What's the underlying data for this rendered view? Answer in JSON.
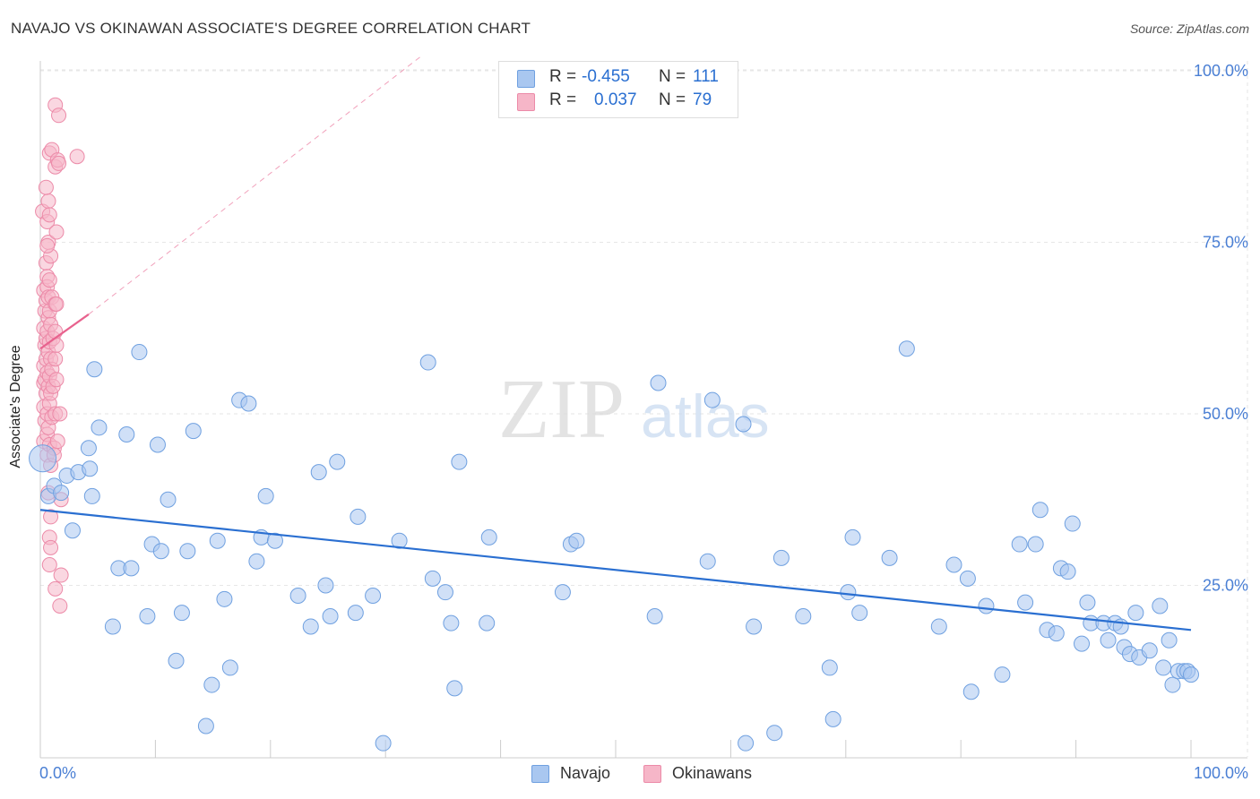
{
  "header": {
    "title": "NAVAJO VS OKINAWAN ASSOCIATE'S DEGREE CORRELATION CHART",
    "source": "Source: ZipAtlas.com"
  },
  "watermark": {
    "zip": "ZIP",
    "atlas": "atlas"
  },
  "legend": {
    "r_label": "R =",
    "n_label": "N =",
    "navajo": {
      "r": "-0.455",
      "n": "111"
    },
    "okinawans": {
      "r": "0.037",
      "n": "79"
    }
  },
  "colors": {
    "navajo_fill": "#a9c7f0",
    "navajo_stroke": "#6fa0e0",
    "navajo_line": "#2a6fd1",
    "okinawan_fill": "#f6b6c8",
    "okinawan_stroke": "#ec8aa8",
    "okinawan_line": "#e8628e",
    "axis_text": "#4a7fd4",
    "grid": "#e6e6e6"
  },
  "chart_data": {
    "type": "scatter",
    "title": "NAVAJO VS OKINAWAN ASSOCIATE'S DEGREE CORRELATION CHART",
    "xlabel": "",
    "ylabel": "Associate's Degree",
    "xlim": [
      0,
      100
    ],
    "ylim": [
      0,
      102
    ],
    "x_tick_labels": [
      "0.0%",
      "100.0%"
    ],
    "y_ticks": [
      25,
      50,
      75,
      100
    ],
    "y_tick_labels": [
      "25.0%",
      "50.0%",
      "75.0%",
      "100.0%"
    ],
    "grid": true,
    "series": [
      {
        "name": "Navajo",
        "r": -0.455,
        "n": 111,
        "trend": {
          "x0": 0,
          "y0": 36,
          "x1": 100,
          "y1": 18.5
        },
        "points": [
          [
            0.2,
            43.5
          ],
          [
            0.7,
            38
          ],
          [
            1.2,
            39.5
          ],
          [
            1.8,
            38.5
          ],
          [
            2.3,
            41
          ],
          [
            2.8,
            33
          ],
          [
            3.3,
            41.5
          ],
          [
            4.2,
            45
          ],
          [
            4.3,
            42
          ],
          [
            4.5,
            38
          ],
          [
            4.7,
            56.5
          ],
          [
            5.1,
            48
          ],
          [
            6.3,
            19
          ],
          [
            6.8,
            27.5
          ],
          [
            7.5,
            47
          ],
          [
            7.9,
            27.5
          ],
          [
            8.6,
            59
          ],
          [
            9.3,
            20.5
          ],
          [
            9.7,
            31
          ],
          [
            10.2,
            45.5
          ],
          [
            10.5,
            30
          ],
          [
            11.1,
            37.5
          ],
          [
            11.8,
            14
          ],
          [
            12.3,
            21
          ],
          [
            12.8,
            30
          ],
          [
            13.3,
            47.5
          ],
          [
            14.4,
            4.5
          ],
          [
            14.9,
            10.5
          ],
          [
            15.4,
            31.5
          ],
          [
            16,
            23
          ],
          [
            16.5,
            13
          ],
          [
            17.3,
            52
          ],
          [
            18.1,
            51.5
          ],
          [
            18.8,
            28.5
          ],
          [
            19.2,
            32
          ],
          [
            19.6,
            38
          ],
          [
            20.4,
            31.5
          ],
          [
            22.4,
            23.5
          ],
          [
            23.5,
            19
          ],
          [
            24.2,
            41.5
          ],
          [
            24.8,
            25
          ],
          [
            25.2,
            20.5
          ],
          [
            25.8,
            43
          ],
          [
            27.4,
            21
          ],
          [
            27.6,
            35
          ],
          [
            28.9,
            23.5
          ],
          [
            29.8,
            2
          ],
          [
            31.2,
            31.5
          ],
          [
            33.7,
            57.5
          ],
          [
            34.1,
            26
          ],
          [
            35.2,
            24
          ],
          [
            35.7,
            19.5
          ],
          [
            36,
            10
          ],
          [
            36.4,
            43
          ],
          [
            38.8,
            19.5
          ],
          [
            39,
            32
          ],
          [
            45.4,
            24
          ],
          [
            46.1,
            31
          ],
          [
            46.6,
            31.5
          ],
          [
            53.4,
            20.5
          ],
          [
            53.7,
            54.5
          ],
          [
            58,
            28.5
          ],
          [
            58.4,
            52
          ],
          [
            61.1,
            48.5
          ],
          [
            61.3,
            2
          ],
          [
            62,
            19
          ],
          [
            63.8,
            3.5
          ],
          [
            64.4,
            29
          ],
          [
            66.3,
            20.5
          ],
          [
            68.6,
            13
          ],
          [
            68.9,
            5.5
          ],
          [
            70.2,
            24
          ],
          [
            70.6,
            32
          ],
          [
            71.2,
            21
          ],
          [
            73.8,
            29
          ],
          [
            75.3,
            59.5
          ],
          [
            78.1,
            19
          ],
          [
            79.4,
            28
          ],
          [
            80.6,
            26
          ],
          [
            80.9,
            9.5
          ],
          [
            82.2,
            22
          ],
          [
            83.6,
            12
          ],
          [
            85.1,
            31
          ],
          [
            85.6,
            22.5
          ],
          [
            86.5,
            31
          ],
          [
            86.9,
            36
          ],
          [
            87.5,
            18.5
          ],
          [
            88.3,
            18
          ],
          [
            88.7,
            27.5
          ],
          [
            89.3,
            27
          ],
          [
            89.7,
            34
          ],
          [
            90.5,
            16.5
          ],
          [
            91,
            22.5
          ],
          [
            91.3,
            19.5
          ],
          [
            92.4,
            19.5
          ],
          [
            92.8,
            17
          ],
          [
            93.4,
            19.5
          ],
          [
            93.9,
            19
          ],
          [
            94.2,
            16
          ],
          [
            94.7,
            15
          ],
          [
            95.2,
            21
          ],
          [
            95.5,
            14.5
          ],
          [
            96.4,
            15.5
          ],
          [
            97.3,
            22
          ],
          [
            97.6,
            13
          ],
          [
            98.1,
            17
          ],
          [
            98.4,
            10.5
          ],
          [
            98.9,
            12.5
          ],
          [
            99.4,
            12.5
          ],
          [
            99.7,
            12.5
          ],
          [
            100,
            12
          ]
        ]
      },
      {
        "name": "Okinawans",
        "r": 0.037,
        "n": 79,
        "trend": {
          "x0": 0,
          "y0": 59.5,
          "x1": 4.2,
          "y1": 64.5
        },
        "trend_dashed": {
          "x0": 4.2,
          "y0": 64.5,
          "x1": 33,
          "y1": 102
        },
        "points": [
          [
            0.2,
            79.5
          ],
          [
            0.3,
            68
          ],
          [
            0.3,
            62.5
          ],
          [
            0.3,
            57
          ],
          [
            0.3,
            54.5
          ],
          [
            0.3,
            51
          ],
          [
            0.3,
            46
          ],
          [
            0.4,
            65
          ],
          [
            0.4,
            60
          ],
          [
            0.4,
            55
          ],
          [
            0.4,
            49
          ],
          [
            0.5,
            72
          ],
          [
            0.5,
            66.5
          ],
          [
            0.5,
            61
          ],
          [
            0.5,
            58
          ],
          [
            0.5,
            53
          ],
          [
            0.6,
            78
          ],
          [
            0.6,
            70
          ],
          [
            0.6,
            68.5
          ],
          [
            0.6,
            62
          ],
          [
            0.6,
            56
          ],
          [
            0.6,
            50
          ],
          [
            0.6,
            47
          ],
          [
            0.6,
            44
          ],
          [
            0.7,
            81
          ],
          [
            0.7,
            75
          ],
          [
            0.7,
            67
          ],
          [
            0.7,
            64
          ],
          [
            0.7,
            59
          ],
          [
            0.7,
            54
          ],
          [
            0.7,
            48
          ],
          [
            0.8,
            88
          ],
          [
            0.8,
            79
          ],
          [
            0.8,
            69.5
          ],
          [
            0.8,
            65
          ],
          [
            0.8,
            60.5
          ],
          [
            0.8,
            55.5
          ],
          [
            0.8,
            51.5
          ],
          [
            0.8,
            45.5
          ],
          [
            0.8,
            32
          ],
          [
            0.8,
            28
          ],
          [
            0.9,
            73
          ],
          [
            0.9,
            63
          ],
          [
            0.9,
            58
          ],
          [
            0.9,
            53
          ],
          [
            0.9,
            42.5
          ],
          [
            0.9,
            30.5
          ],
          [
            1,
            88.5
          ],
          [
            1,
            67
          ],
          [
            1,
            56.5
          ],
          [
            1,
            49.5
          ],
          [
            1.1,
            61
          ],
          [
            1.1,
            54
          ],
          [
            1.2,
            45
          ],
          [
            1.2,
            44
          ],
          [
            1.3,
            95
          ],
          [
            1.3,
            86
          ],
          [
            1.3,
            66
          ],
          [
            1.3,
            62
          ],
          [
            1.3,
            58
          ],
          [
            1.3,
            50
          ],
          [
            1.3,
            24.5
          ],
          [
            1.4,
            76.5
          ],
          [
            1.4,
            66
          ],
          [
            1.4,
            60
          ],
          [
            1.4,
            55
          ],
          [
            1.5,
            87
          ],
          [
            1.5,
            46
          ],
          [
            1.6,
            93.5
          ],
          [
            1.6,
            86.5
          ],
          [
            1.7,
            50
          ],
          [
            1.7,
            22
          ],
          [
            1.8,
            26.5
          ],
          [
            1.8,
            37.5
          ],
          [
            3.2,
            87.5
          ],
          [
            0.5,
            83
          ],
          [
            0.6,
            74.5
          ],
          [
            0.7,
            38.5
          ],
          [
            0.9,
            35
          ]
        ]
      }
    ]
  }
}
